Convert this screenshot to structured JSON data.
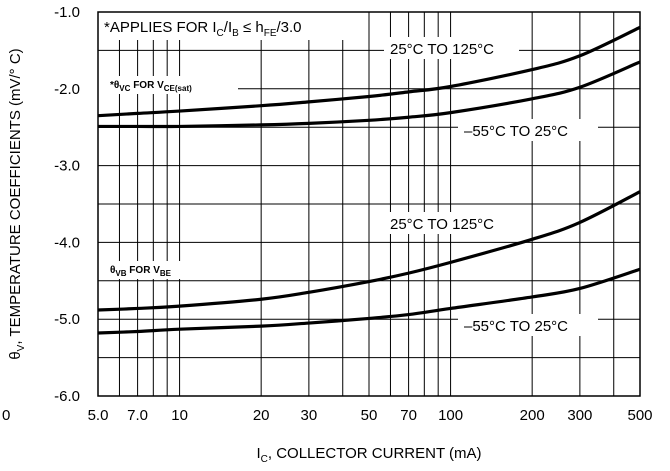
{
  "chart_data": {
    "type": "line",
    "xlabel": "I",
    "xlabel_sub": "C",
    "xlabel_rest": ", COLLECTOR CURRENT (mA)",
    "ylabel_theta": "θ",
    "ylabel_sub": "V",
    "ylabel_rest": ", TEMPERATURE COEFFICIENTS (mV/° C)",
    "x_scale": "log",
    "xlim": [
      5.0,
      500
    ],
    "ylim": [
      -6.0,
      -1.0
    ],
    "grid": true,
    "x_ticks": [
      {
        "value": 5.0,
        "label": "5.0"
      },
      {
        "value": 7.0,
        "label": "7.0"
      },
      {
        "value": 10,
        "label": "10"
      },
      {
        "value": 20,
        "label": "20"
      },
      {
        "value": 30,
        "label": "30"
      },
      {
        "value": 50,
        "label": "50"
      },
      {
        "value": 70,
        "label": "70"
      },
      {
        "value": 100,
        "label": "100"
      },
      {
        "value": 200,
        "label": "200"
      },
      {
        "value": 300,
        "label": "300"
      },
      {
        "value": 500,
        "label": "500"
      }
    ],
    "x_left_label": "0",
    "y_ticks": [
      {
        "value": -1.0,
        "label": "-1.0"
      },
      {
        "value": -2.0,
        "label": "-2.0"
      },
      {
        "value": -3.0,
        "label": "-3.0"
      },
      {
        "value": -4.0,
        "label": "-4.0"
      },
      {
        "value": -5.0,
        "label": "-5.0"
      },
      {
        "value": -6.0,
        "label": "-6.0"
      }
    ],
    "series": [
      {
        "group": "VC",
        "name": "25°C TO 125°C",
        "x": [
          5,
          7,
          10,
          20,
          30,
          50,
          70,
          100,
          200,
          300,
          500
        ],
        "y": [
          -2.35,
          -2.32,
          -2.29,
          -2.22,
          -2.17,
          -2.1,
          -2.04,
          -1.97,
          -1.75,
          -1.57,
          -1.2
        ]
      },
      {
        "group": "VC",
        "name": "-55°C TO 25°C",
        "x": [
          5,
          7,
          10,
          20,
          30,
          50,
          70,
          100,
          200,
          300,
          500
        ],
        "y": [
          -2.49,
          -2.49,
          -2.49,
          -2.47,
          -2.45,
          -2.41,
          -2.37,
          -2.31,
          -2.13,
          -1.98,
          -1.65
        ]
      },
      {
        "group": "VB",
        "name": "25°C TO 125°C",
        "x": [
          5,
          7,
          10,
          20,
          30,
          50,
          70,
          100,
          200,
          300,
          500
        ],
        "y": [
          -4.88,
          -4.86,
          -4.83,
          -4.74,
          -4.65,
          -4.51,
          -4.4,
          -4.26,
          -3.96,
          -3.74,
          -3.34
        ]
      },
      {
        "group": "VB",
        "name": "-55°C TO 25°C",
        "x": [
          5,
          7,
          10,
          20,
          30,
          50,
          70,
          100,
          200,
          300,
          500
        ],
        "y": [
          -5.18,
          -5.16,
          -5.13,
          -5.09,
          -5.05,
          -4.99,
          -4.94,
          -4.86,
          -4.71,
          -4.6,
          -4.35
        ]
      }
    ],
    "annotations": {
      "applies_prefix": "*APPLIES FOR I",
      "applies_c": "C",
      "applies_slash": "/I",
      "applies_b": "B",
      "applies_le": " ≤ h",
      "applies_fe": "FE",
      "applies_end": "/3.0",
      "vc_star": "*θ",
      "vc_sub": "VC",
      "vc_for": " FOR V",
      "vc_sub2": "CE(sat)",
      "vb_theta": "θ",
      "vb_sub": "VB",
      "vb_for": " FOR V",
      "vb_sub2": "BE",
      "label_vc_hot": "25°C TO 125°C",
      "label_vc_cold": "–55°C TO 25°C",
      "label_vb_hot": "25°C TO 125°C",
      "label_vb_cold": "–55°C TO 25°C"
    }
  }
}
